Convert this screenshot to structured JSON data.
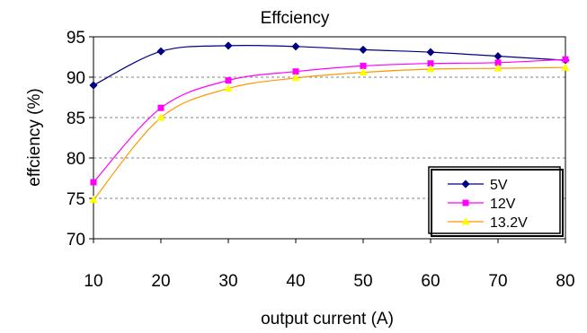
{
  "chart_data": {
    "type": "line",
    "title": "Effciency",
    "xlabel": "output current (A)",
    "ylabel": "effciency (%)",
    "x": [
      10,
      20,
      30,
      40,
      50,
      60,
      70,
      80
    ],
    "xlim": [
      10,
      80
    ],
    "ylim": [
      70,
      95
    ],
    "xticks": [
      "10",
      "20",
      "30",
      "40",
      "50",
      "60",
      "70",
      "80"
    ],
    "yticks": [
      "70",
      "75",
      "80",
      "85",
      "90",
      "95"
    ],
    "grid": "horizontal dashed",
    "legend_position": "bottom-right",
    "series": [
      {
        "name": "5V",
        "values": [
          89.0,
          93.2,
          93.9,
          93.8,
          93.4,
          93.1,
          92.6,
          92.1
        ],
        "color": "#000080",
        "marker": "diamond"
      },
      {
        "name": "12V",
        "values": [
          77.0,
          86.2,
          89.6,
          90.7,
          91.4,
          91.7,
          91.8,
          92.2
        ],
        "color": "#ff00ff",
        "marker": "square"
      },
      {
        "name": "13.2V",
        "values": [
          74.8,
          85.0,
          88.6,
          89.9,
          90.6,
          91.0,
          91.1,
          91.2
        ],
        "color": "#ffff00",
        "line_color": "#ff9900",
        "marker": "triangle"
      }
    ]
  }
}
